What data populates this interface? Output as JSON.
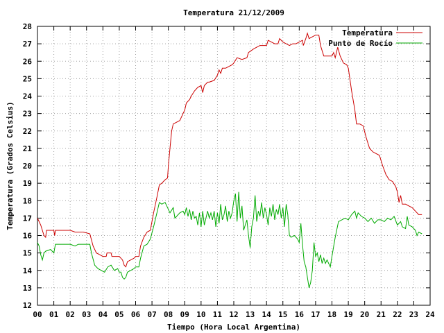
{
  "chart_data": {
    "type": "line",
    "title": "Temperatura 21/12/2009",
    "xlabel": "Tiempo (Hora Local Argentina)",
    "ylabel": "Temperatura (Grados Celsius)",
    "xlim": [
      0,
      24
    ],
    "ylim": [
      12,
      28
    ],
    "grid": true,
    "legend": "top-right",
    "x_ticks": [
      "00",
      "01",
      "02",
      "03",
      "04",
      "05",
      "06",
      "07",
      "08",
      "09",
      "10",
      "11",
      "12",
      "13",
      "14",
      "15",
      "16",
      "17",
      "18",
      "19",
      "20",
      "21",
      "22",
      "23",
      "24"
    ],
    "y_ticks": [
      "12",
      "13",
      "14",
      "15",
      "16",
      "17",
      "18",
      "19",
      "20",
      "21",
      "22",
      "23",
      "24",
      "25",
      "26",
      "27",
      "28"
    ],
    "series": [
      {
        "name": "Temperatura",
        "color": "#cc0000",
        "points": [
          [
            0.0,
            17.0
          ],
          [
            0.2,
            16.6
          ],
          [
            0.4,
            16.0
          ],
          [
            0.5,
            15.9
          ],
          [
            0.55,
            16.3
          ],
          [
            0.8,
            16.3
          ],
          [
            1.0,
            16.3
          ],
          [
            1.05,
            16.0
          ],
          [
            1.1,
            16.3
          ],
          [
            1.5,
            16.3
          ],
          [
            2.0,
            16.3
          ],
          [
            2.3,
            16.2
          ],
          [
            2.8,
            16.2
          ],
          [
            3.2,
            16.1
          ],
          [
            3.4,
            15.4
          ],
          [
            3.6,
            15.0
          ],
          [
            3.8,
            14.9
          ],
          [
            4.0,
            14.8
          ],
          [
            4.2,
            14.8
          ],
          [
            4.25,
            15.0
          ],
          [
            4.5,
            15.0
          ],
          [
            4.55,
            14.8
          ],
          [
            4.8,
            14.8
          ],
          [
            5.0,
            14.8
          ],
          [
            5.2,
            14.6
          ],
          [
            5.3,
            14.3
          ],
          [
            5.4,
            14.2
          ],
          [
            5.5,
            14.5
          ],
          [
            5.7,
            14.6
          ],
          [
            5.9,
            14.7
          ],
          [
            6.0,
            14.8
          ],
          [
            6.2,
            14.8
          ],
          [
            6.3,
            15.4
          ],
          [
            6.5,
            15.9
          ],
          [
            6.7,
            16.2
          ],
          [
            6.9,
            16.3
          ],
          [
            7.1,
            17.3
          ],
          [
            7.3,
            18.2
          ],
          [
            7.45,
            18.9
          ],
          [
            7.6,
            19.0
          ],
          [
            7.8,
            19.2
          ],
          [
            7.95,
            19.3
          ],
          [
            8.0,
            20.0
          ],
          [
            8.1,
            21.0
          ],
          [
            8.2,
            22.0
          ],
          [
            8.3,
            22.4
          ],
          [
            8.5,
            22.5
          ],
          [
            8.7,
            22.6
          ],
          [
            8.9,
            23.0
          ],
          [
            9.0,
            23.2
          ],
          [
            9.1,
            23.6
          ],
          [
            9.3,
            23.8
          ],
          [
            9.4,
            24.0
          ],
          [
            9.6,
            24.3
          ],
          [
            9.8,
            24.5
          ],
          [
            10.0,
            24.6
          ],
          [
            10.1,
            24.2
          ],
          [
            10.2,
            24.6
          ],
          [
            10.4,
            24.8
          ],
          [
            10.5,
            24.8
          ],
          [
            10.8,
            24.9
          ],
          [
            11.0,
            25.2
          ],
          [
            11.1,
            25.5
          ],
          [
            11.2,
            25.3
          ],
          [
            11.3,
            25.6
          ],
          [
            11.5,
            25.6
          ],
          [
            11.7,
            25.7
          ],
          [
            11.9,
            25.8
          ],
          [
            12.0,
            25.9
          ],
          [
            12.2,
            26.2
          ],
          [
            12.5,
            26.1
          ],
          [
            12.8,
            26.2
          ],
          [
            12.9,
            26.5
          ],
          [
            13.2,
            26.7
          ],
          [
            13.4,
            26.8
          ],
          [
            13.6,
            26.9
          ],
          [
            13.8,
            26.9
          ],
          [
            14.0,
            26.9
          ],
          [
            14.1,
            27.2
          ],
          [
            14.3,
            27.1
          ],
          [
            14.5,
            27.0
          ],
          [
            14.7,
            27.0
          ],
          [
            14.8,
            27.3
          ],
          [
            15.0,
            27.1
          ],
          [
            15.2,
            27.0
          ],
          [
            15.4,
            26.9
          ],
          [
            15.6,
            27.0
          ],
          [
            15.8,
            27.0
          ],
          [
            16.0,
            27.1
          ],
          [
            16.2,
            27.2
          ],
          [
            16.25,
            26.9
          ],
          [
            16.4,
            27.3
          ],
          [
            16.5,
            27.6
          ],
          [
            16.6,
            27.3
          ],
          [
            16.8,
            27.4
          ],
          [
            17.0,
            27.5
          ],
          [
            17.2,
            27.5
          ],
          [
            17.3,
            26.9
          ],
          [
            17.5,
            26.3
          ],
          [
            17.8,
            26.3
          ],
          [
            18.0,
            26.3
          ],
          [
            18.1,
            26.5
          ],
          [
            18.2,
            26.2
          ],
          [
            18.35,
            26.8
          ],
          [
            18.5,
            26.3
          ],
          [
            18.7,
            25.9
          ],
          [
            18.9,
            25.8
          ],
          [
            19.0,
            25.6
          ],
          [
            19.2,
            24.3
          ],
          [
            19.4,
            23.2
          ],
          [
            19.5,
            22.4
          ],
          [
            19.7,
            22.4
          ],
          [
            19.9,
            22.3
          ],
          [
            20.1,
            21.6
          ],
          [
            20.3,
            21.0
          ],
          [
            20.5,
            20.8
          ],
          [
            20.7,
            20.7
          ],
          [
            20.9,
            20.6
          ],
          [
            21.1,
            20.0
          ],
          [
            21.3,
            19.5
          ],
          [
            21.5,
            19.2
          ],
          [
            21.7,
            19.1
          ],
          [
            21.9,
            18.8
          ],
          [
            22.0,
            18.5
          ],
          [
            22.1,
            17.9
          ],
          [
            22.2,
            18.3
          ],
          [
            22.3,
            17.8
          ],
          [
            22.5,
            17.8
          ],
          [
            22.7,
            17.7
          ],
          [
            22.9,
            17.6
          ],
          [
            23.1,
            17.4
          ],
          [
            23.3,
            17.2
          ],
          [
            23.5,
            17.2
          ]
        ]
      },
      {
        "name": "Punto de Rocío",
        "color": "#00aa00",
        "points": [
          [
            0.0,
            15.6
          ],
          [
            0.1,
            15.4
          ],
          [
            0.2,
            14.9
          ],
          [
            0.3,
            14.6
          ],
          [
            0.4,
            15.0
          ],
          [
            0.5,
            15.1
          ],
          [
            0.8,
            15.2
          ],
          [
            1.0,
            15.0
          ],
          [
            1.1,
            15.5
          ],
          [
            1.5,
            15.5
          ],
          [
            2.0,
            15.5
          ],
          [
            2.3,
            15.4
          ],
          [
            2.5,
            15.5
          ],
          [
            3.0,
            15.5
          ],
          [
            3.2,
            15.5
          ],
          [
            3.3,
            15.0
          ],
          [
            3.5,
            14.3
          ],
          [
            3.7,
            14.1
          ],
          [
            3.9,
            14.0
          ],
          [
            4.1,
            13.9
          ],
          [
            4.3,
            14.2
          ],
          [
            4.5,
            14.3
          ],
          [
            4.7,
            14.0
          ],
          [
            4.9,
            14.1
          ],
          [
            5.0,
            13.9
          ],
          [
            5.1,
            13.9
          ],
          [
            5.2,
            13.6
          ],
          [
            5.3,
            13.5
          ],
          [
            5.4,
            13.6
          ],
          [
            5.5,
            13.9
          ],
          [
            5.7,
            14.0
          ],
          [
            5.9,
            14.1
          ],
          [
            6.0,
            14.2
          ],
          [
            6.2,
            14.2
          ],
          [
            6.3,
            14.7
          ],
          [
            6.5,
            15.4
          ],
          [
            6.7,
            15.5
          ],
          [
            6.9,
            15.8
          ],
          [
            7.1,
            16.5
          ],
          [
            7.3,
            17.3
          ],
          [
            7.45,
            17.9
          ],
          [
            7.6,
            17.8
          ],
          [
            7.8,
            17.9
          ],
          [
            8.0,
            17.5
          ],
          [
            8.1,
            17.3
          ],
          [
            8.3,
            17.6
          ],
          [
            8.4,
            17.0
          ],
          [
            8.5,
            17.1
          ],
          [
            8.7,
            17.3
          ],
          [
            8.9,
            17.4
          ],
          [
            9.0,
            17.2
          ],
          [
            9.1,
            17.6
          ],
          [
            9.2,
            17.1
          ],
          [
            9.3,
            17.5
          ],
          [
            9.4,
            16.9
          ],
          [
            9.5,
            17.4
          ],
          [
            9.6,
            17.0
          ],
          [
            9.7,
            17.1
          ],
          [
            9.8,
            16.6
          ],
          [
            9.9,
            17.3
          ],
          [
            10.0,
            16.5
          ],
          [
            10.1,
            17.4
          ],
          [
            10.2,
            16.6
          ],
          [
            10.3,
            17.0
          ],
          [
            10.4,
            17.4
          ],
          [
            10.5,
            17.0
          ],
          [
            10.6,
            17.3
          ],
          [
            10.7,
            16.9
          ],
          [
            10.8,
            17.4
          ],
          [
            10.9,
            16.5
          ],
          [
            11.0,
            17.3
          ],
          [
            11.1,
            16.7
          ],
          [
            11.2,
            17.8
          ],
          [
            11.3,
            16.9
          ],
          [
            11.4,
            17.2
          ],
          [
            11.5,
            17.7
          ],
          [
            11.6,
            16.8
          ],
          [
            11.7,
            17.4
          ],
          [
            11.8,
            17.0
          ],
          [
            11.9,
            17.3
          ],
          [
            12.0,
            18.0
          ],
          [
            12.1,
            18.4
          ],
          [
            12.2,
            16.8
          ],
          [
            12.3,
            18.5
          ],
          [
            12.4,
            17.0
          ],
          [
            12.5,
            17.7
          ],
          [
            12.6,
            16.3
          ],
          [
            12.7,
            16.6
          ],
          [
            12.8,
            16.9
          ],
          [
            12.9,
            16.0
          ],
          [
            13.0,
            15.3
          ],
          [
            13.1,
            16.5
          ],
          [
            13.2,
            17.0
          ],
          [
            13.3,
            18.3
          ],
          [
            13.4,
            16.8
          ],
          [
            13.5,
            17.4
          ],
          [
            13.6,
            17.1
          ],
          [
            13.7,
            17.9
          ],
          [
            13.8,
            17.0
          ],
          [
            13.9,
            17.6
          ],
          [
            14.0,
            17.2
          ],
          [
            14.1,
            16.6
          ],
          [
            14.2,
            17.6
          ],
          [
            14.3,
            17.1
          ],
          [
            14.4,
            17.8
          ],
          [
            14.5,
            16.9
          ],
          [
            14.6,
            17.5
          ],
          [
            14.7,
            17.2
          ],
          [
            14.8,
            17.8
          ],
          [
            14.9,
            17.0
          ],
          [
            15.0,
            17.6
          ],
          [
            15.1,
            16.5
          ],
          [
            15.2,
            17.8
          ],
          [
            15.3,
            17.2
          ],
          [
            15.4,
            16.0
          ],
          [
            15.5,
            15.9
          ],
          [
            15.7,
            16.0
          ],
          [
            15.9,
            15.8
          ],
          [
            16.0,
            15.6
          ],
          [
            16.1,
            16.7
          ],
          [
            16.2,
            15.5
          ],
          [
            16.3,
            14.5
          ],
          [
            16.4,
            14.2
          ],
          [
            16.5,
            13.6
          ],
          [
            16.6,
            13.0
          ],
          [
            16.7,
            13.3
          ],
          [
            16.8,
            14.0
          ],
          [
            16.9,
            15.6
          ],
          [
            17.0,
            14.8
          ],
          [
            17.1,
            15.0
          ],
          [
            17.2,
            14.5
          ],
          [
            17.3,
            14.9
          ],
          [
            17.4,
            14.4
          ],
          [
            17.5,
            14.7
          ],
          [
            17.6,
            14.4
          ],
          [
            17.7,
            14.6
          ],
          [
            17.9,
            14.2
          ],
          [
            18.0,
            14.8
          ],
          [
            18.2,
            15.9
          ],
          [
            18.4,
            16.8
          ],
          [
            18.6,
            16.9
          ],
          [
            18.8,
            17.0
          ],
          [
            19.0,
            16.9
          ],
          [
            19.2,
            17.2
          ],
          [
            19.4,
            17.4
          ],
          [
            19.5,
            17.0
          ],
          [
            19.6,
            17.3
          ],
          [
            19.8,
            17.1
          ],
          [
            20.0,
            17.0
          ],
          [
            20.2,
            16.8
          ],
          [
            20.4,
            17.0
          ],
          [
            20.6,
            16.7
          ],
          [
            20.8,
            16.9
          ],
          [
            21.0,
            16.9
          ],
          [
            21.2,
            16.8
          ],
          [
            21.4,
            17.0
          ],
          [
            21.6,
            16.9
          ],
          [
            21.8,
            17.1
          ],
          [
            22.0,
            16.6
          ],
          [
            22.2,
            16.8
          ],
          [
            22.3,
            16.5
          ],
          [
            22.5,
            16.4
          ],
          [
            22.6,
            17.1
          ],
          [
            22.7,
            16.6
          ],
          [
            22.9,
            16.5
          ],
          [
            23.1,
            16.3
          ],
          [
            23.2,
            16.0
          ],
          [
            23.3,
            16.2
          ],
          [
            23.5,
            16.1
          ]
        ]
      }
    ]
  }
}
